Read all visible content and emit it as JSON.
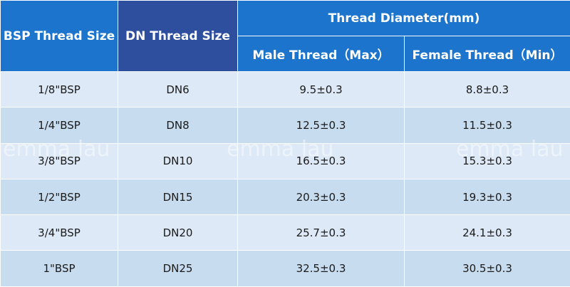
{
  "table": {
    "header": {
      "bsp": "BSP Thread Size",
      "dn": "DN Thread Size",
      "group": "Thread Diameter(mm)",
      "sub": [
        "Male Thread（Max）",
        "Female Thread（Min）"
      ]
    },
    "rows": [
      [
        "1/8\"BSP",
        "DN6",
        "9.5±0.3",
        "8.8±0.3"
      ],
      [
        "1/4\"BSP",
        "DN8",
        "12.5±0.3",
        "11.5±0.3"
      ],
      [
        "3/8\"BSP",
        "DN10",
        "16.5±0.3",
        "15.3±0.3"
      ],
      [
        "1/2\"BSP",
        "DN15",
        "20.3±0.3",
        "19.3±0.3"
      ],
      [
        "3/4\"BSP",
        "DN20",
        "25.7±0.3",
        "24.1±0.3"
      ],
      [
        "1\"BSP",
        "DN25",
        "32.5±0.3",
        "30.5±0.3"
      ]
    ],
    "watermark": "emma lau"
  }
}
